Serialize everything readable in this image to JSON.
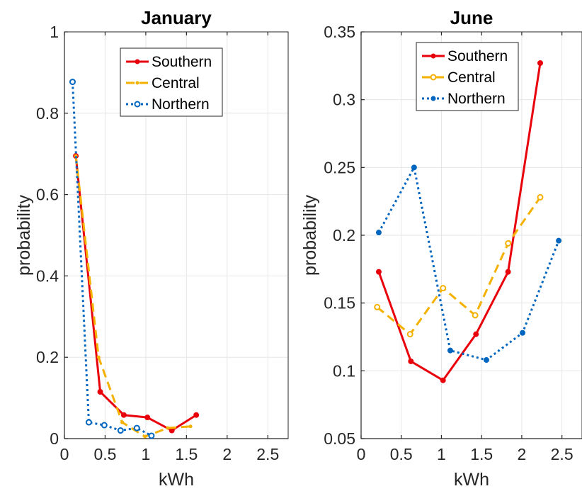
{
  "chart_data": [
    {
      "type": "line",
      "title": "January",
      "xlabel": "kWh",
      "ylabel": "probability",
      "xlim": [
        0,
        2.75
      ],
      "ylim": [
        0,
        1
      ],
      "xticks": [
        0,
        0.5,
        1,
        1.5,
        2,
        2.5
      ],
      "xtick_labels": [
        "0",
        "0.5",
        "1",
        "1.5",
        "2",
        "2.5"
      ],
      "yticks": [
        0,
        0.2,
        0.4,
        0.6,
        0.8,
        1
      ],
      "ytick_labels": [
        "0",
        "0.2",
        "0.4",
        "0.6",
        "0.8",
        "1"
      ],
      "grid": true,
      "legend_position": "top-right",
      "series": [
        {
          "name": "Southern",
          "color": "#e8000b",
          "style": "solid",
          "marker": "filled",
          "x": [
            0.14,
            0.44,
            0.73,
            1.02,
            1.32,
            1.62
          ],
          "y": [
            0.695,
            0.115,
            0.058,
            0.052,
            0.02,
            0.058
          ]
        },
        {
          "name": "Central",
          "color": "#f5b100",
          "style": "dashed",
          "marker": "small",
          "x": [
            0.14,
            0.42,
            0.71,
            0.99,
            1.27,
            1.55
          ],
          "y": [
            0.695,
            0.2,
            0.04,
            0.005,
            0.026,
            0.03
          ]
        },
        {
          "name": "Northern",
          "color": "#0066c0",
          "style": "dotted",
          "marker": "open",
          "x": [
            0.1,
            0.3,
            0.49,
            0.69,
            0.89,
            1.07
          ],
          "y": [
            0.877,
            0.04,
            0.033,
            0.02,
            0.026,
            0.007
          ]
        }
      ]
    },
    {
      "type": "line",
      "title": "June",
      "xlabel": "kWh",
      "ylabel": "probability",
      "xlim": [
        0,
        2.75
      ],
      "ylim": [
        0.05,
        0.35
      ],
      "xticks": [
        0,
        0.5,
        1,
        1.5,
        2,
        2.5
      ],
      "xtick_labels": [
        "0",
        "0.5",
        "1",
        "1.5",
        "2",
        "2.5"
      ],
      "yticks": [
        0.05,
        0.1,
        0.15,
        0.2,
        0.25,
        0.3,
        0.35
      ],
      "ytick_labels": [
        "0.05",
        "0.1",
        "0.15",
        "0.2",
        "0.25",
        "0.3",
        "0.35"
      ],
      "grid": true,
      "legend_position": "top-right",
      "series": [
        {
          "name": "Southern",
          "color": "#e8000b",
          "style": "solid",
          "marker": "filled",
          "x": [
            0.22,
            0.62,
            1.02,
            1.43,
            1.83,
            2.23
          ],
          "y": [
            0.173,
            0.107,
            0.093,
            0.127,
            0.173,
            0.327
          ]
        },
        {
          "name": "Central",
          "color": "#f5b100",
          "style": "dashed",
          "marker": "open",
          "x": [
            0.2,
            0.61,
            1.02,
            1.42,
            1.83,
            2.23
          ],
          "y": [
            0.147,
            0.127,
            0.161,
            0.141,
            0.194,
            0.228
          ]
        },
        {
          "name": "Northern",
          "color": "#0066c0",
          "style": "dotted",
          "marker": "filled",
          "x": [
            0.22,
            0.66,
            1.11,
            1.56,
            2.01,
            2.46
          ],
          "y": [
            0.202,
            0.25,
            0.115,
            0.108,
            0.128,
            0.196
          ]
        }
      ]
    }
  ]
}
